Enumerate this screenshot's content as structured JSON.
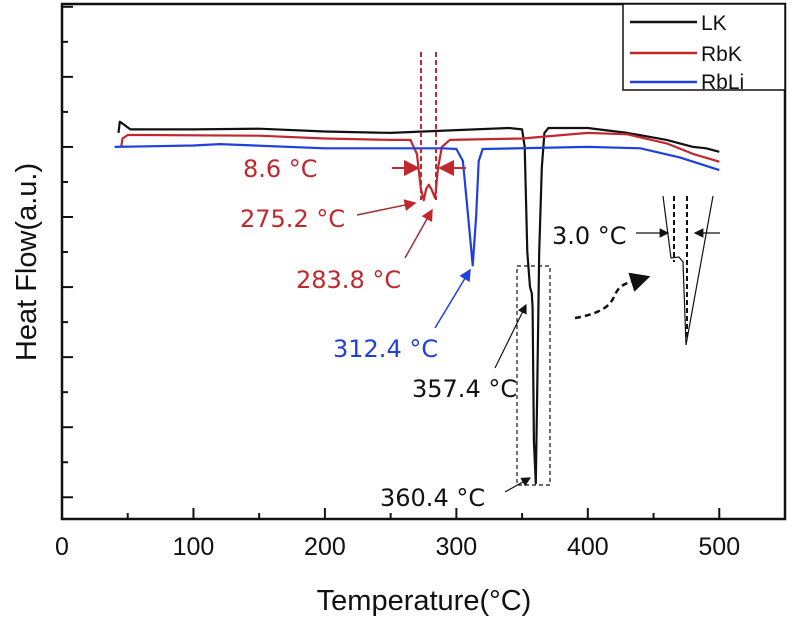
{
  "chart_data": {
    "type": "line",
    "title": "",
    "xlabel": "Temperature(°C)",
    "ylabel": "Heat Flow(a.u.)",
    "xlim": [
      0,
      550
    ],
    "ylim": [
      -5.31,
      2.04
    ],
    "x_ticks": [
      0,
      100,
      200,
      300,
      400,
      500
    ],
    "x_tick_labels": [
      "0",
      "100",
      "200",
      "300",
      "400",
      "500"
    ],
    "y_tick_labels_shown": false,
    "grid": false,
    "legend_position": "top-right",
    "series": [
      {
        "name": "LK",
        "color": "#111111",
        "points": [
          [
            43,
            0.2
          ],
          [
            44,
            0.36
          ],
          [
            47,
            0.32
          ],
          [
            52,
            0.25
          ],
          [
            100,
            0.25
          ],
          [
            150,
            0.26
          ],
          [
            200,
            0.22
          ],
          [
            250,
            0.2
          ],
          [
            300,
            0.24
          ],
          [
            340,
            0.27
          ],
          [
            350,
            0.25
          ],
          [
            352,
            0.0
          ],
          [
            354,
            -1.5
          ],
          [
            356,
            -2.0
          ],
          [
            357.4,
            -2.09
          ],
          [
            358,
            -2.3
          ],
          [
            359,
            -4.2
          ],
          [
            360.4,
            -4.8
          ],
          [
            361.5,
            -3.5
          ],
          [
            363,
            -1.5
          ],
          [
            365,
            -0.3
          ],
          [
            367,
            0.2
          ],
          [
            370,
            0.27
          ],
          [
            400,
            0.27
          ],
          [
            430,
            0.2
          ],
          [
            460,
            0.1
          ],
          [
            480,
            0.0
          ],
          [
            490,
            -0.02
          ],
          [
            500,
            -0.07
          ]
        ]
      },
      {
        "name": "RbK",
        "color": "#c0282d",
        "points": [
          [
            45,
            0.0
          ],
          [
            46,
            0.12
          ],
          [
            50,
            0.17
          ],
          [
            60,
            0.17
          ],
          [
            150,
            0.16
          ],
          [
            200,
            0.12
          ],
          [
            250,
            0.1
          ],
          [
            265,
            0.1
          ],
          [
            270,
            -0.1
          ],
          [
            273,
            -0.6
          ],
          [
            275.2,
            -0.76
          ],
          [
            277,
            -0.6
          ],
          [
            279,
            -0.54
          ],
          [
            281,
            -0.6
          ],
          [
            283.8,
            -0.73
          ],
          [
            286,
            -0.3
          ],
          [
            289,
            0.0
          ],
          [
            295,
            0.1
          ],
          [
            350,
            0.12
          ],
          [
            400,
            0.2
          ],
          [
            430,
            0.18
          ],
          [
            460,
            0.05
          ],
          [
            480,
            -0.1
          ],
          [
            500,
            -0.21
          ]
        ]
      },
      {
        "name": "RbLi",
        "color": "#1f3fe0",
        "points": [
          [
            40,
            0
          ],
          [
            100,
            0.02
          ],
          [
            120,
            0.04
          ],
          [
            200,
            -0.02
          ],
          [
            290,
            -0.02
          ],
          [
            300,
            -0.03
          ],
          [
            305,
            -0.2
          ],
          [
            309,
            -1.0
          ],
          [
            312.4,
            -1.69
          ],
          [
            315,
            -1.0
          ],
          [
            317,
            -0.2
          ],
          [
            320,
            -0.03
          ],
          [
            400,
            0
          ],
          [
            440,
            -0.02
          ],
          [
            470,
            -0.15
          ],
          [
            500,
            -0.33
          ]
        ]
      }
    ],
    "annotations": {
      "rbk_gap": "8.6 °C",
      "rbk_peak1": "275.2 °C",
      "rbk_peak2": "283.8 °C",
      "rbli_peak": "312.4 °C",
      "lk_peak1": "357.4 °C",
      "lk_peak2": "360.4 °C",
      "lk_gap": "3.0 °C"
    },
    "colors": {
      "red_annotation": "#c0282d",
      "blue_annotation": "#1f3fe0",
      "black": "#111111"
    }
  }
}
